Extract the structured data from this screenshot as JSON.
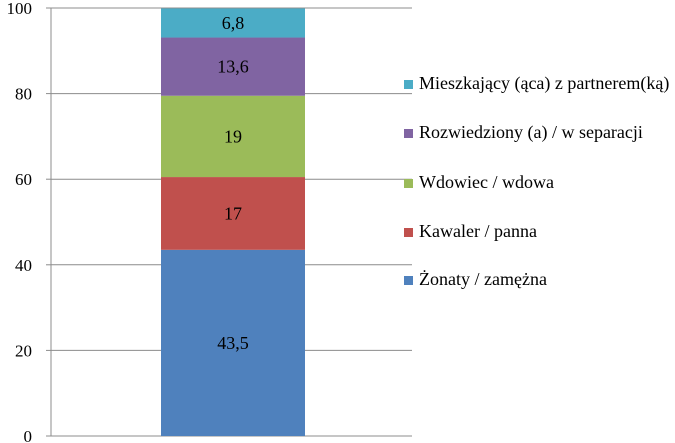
{
  "chart_data": {
    "type": "bar",
    "stacked": true,
    "orientation": "vertical",
    "categories": [
      ""
    ],
    "series": [
      {
        "name": "Żonaty / zamężna",
        "values": [
          43.5
        ],
        "label": "43,5",
        "color": "#4F81BD"
      },
      {
        "name": "Kawaler / panna",
        "values": [
          17
        ],
        "label": "17",
        "color": "#C0504D"
      },
      {
        "name": "Wdowiec / wdowa",
        "values": [
          19
        ],
        "label": "19",
        "color": "#9BBB59"
      },
      {
        "name": "Rozwiedziony (a) / w separacji",
        "values": [
          13.6
        ],
        "label": "13,6",
        "color": "#8064A2"
      },
      {
        "name": "Mieszkający (ąca) z partnerem(ką)",
        "values": [
          6.8
        ],
        "label": "6,8",
        "color": "#4BACC6"
      }
    ],
    "yticks": [
      "0",
      "20",
      "40",
      "60",
      "80",
      "100"
    ],
    "ylim": [
      0,
      100
    ],
    "grid": true,
    "legend_position": "right",
    "title": "",
    "xlabel": "",
    "ylabel": ""
  },
  "legend_order": [
    4,
    3,
    2,
    1,
    0
  ]
}
